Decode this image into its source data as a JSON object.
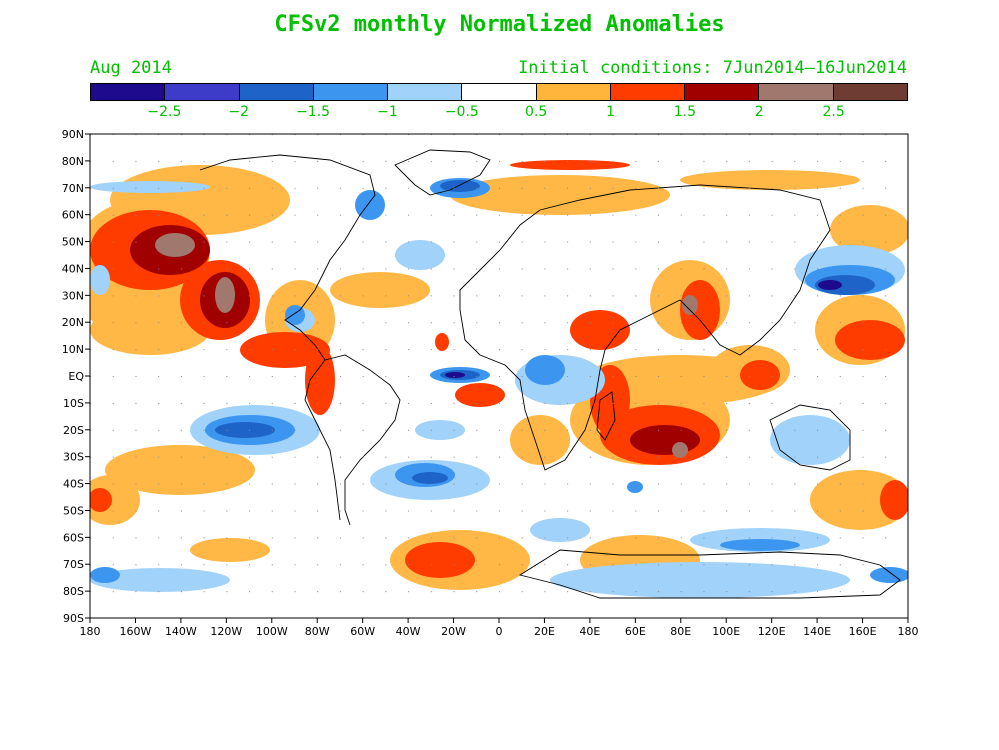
{
  "title": "CFSv2 monthly Normalized Anomalies",
  "subtitle_left": "Aug 2014",
  "subtitle_right": "Initial conditions: 7Jun2014—16Jun2014",
  "colors": {
    "text": "#00c000",
    "scale": [
      "#1e0a8c",
      "#3c3cc8",
      "#1e64c8",
      "#3c96f0",
      "#a0d2fa",
      "#ffffff",
      "#ffb43c",
      "#ff3c00",
      "#a00000",
      "#a0786e",
      "#6e3c32"
    ]
  },
  "colorbar_labels": [
    "−2.5",
    "−2",
    "−1.5",
    "−1",
    "−0.5",
    "0.5",
    "1",
    "1.5",
    "2",
    "2.5"
  ],
  "lat_labels": [
    "90N",
    "80N",
    "70N",
    "60N",
    "50N",
    "40N",
    "30N",
    "20N",
    "10N",
    "EQ",
    "10S",
    "20S",
    "30S",
    "40S",
    "50S",
    "60S",
    "70S",
    "80S",
    "90S"
  ],
  "lon_labels": [
    "180",
    "160W",
    "140W",
    "120W",
    "100W",
    "80W",
    "60W",
    "40W",
    "20W",
    "0",
    "20E",
    "40E",
    "60E",
    "80E",
    "100E",
    "120E",
    "140E",
    "160E",
    "180"
  ]
}
